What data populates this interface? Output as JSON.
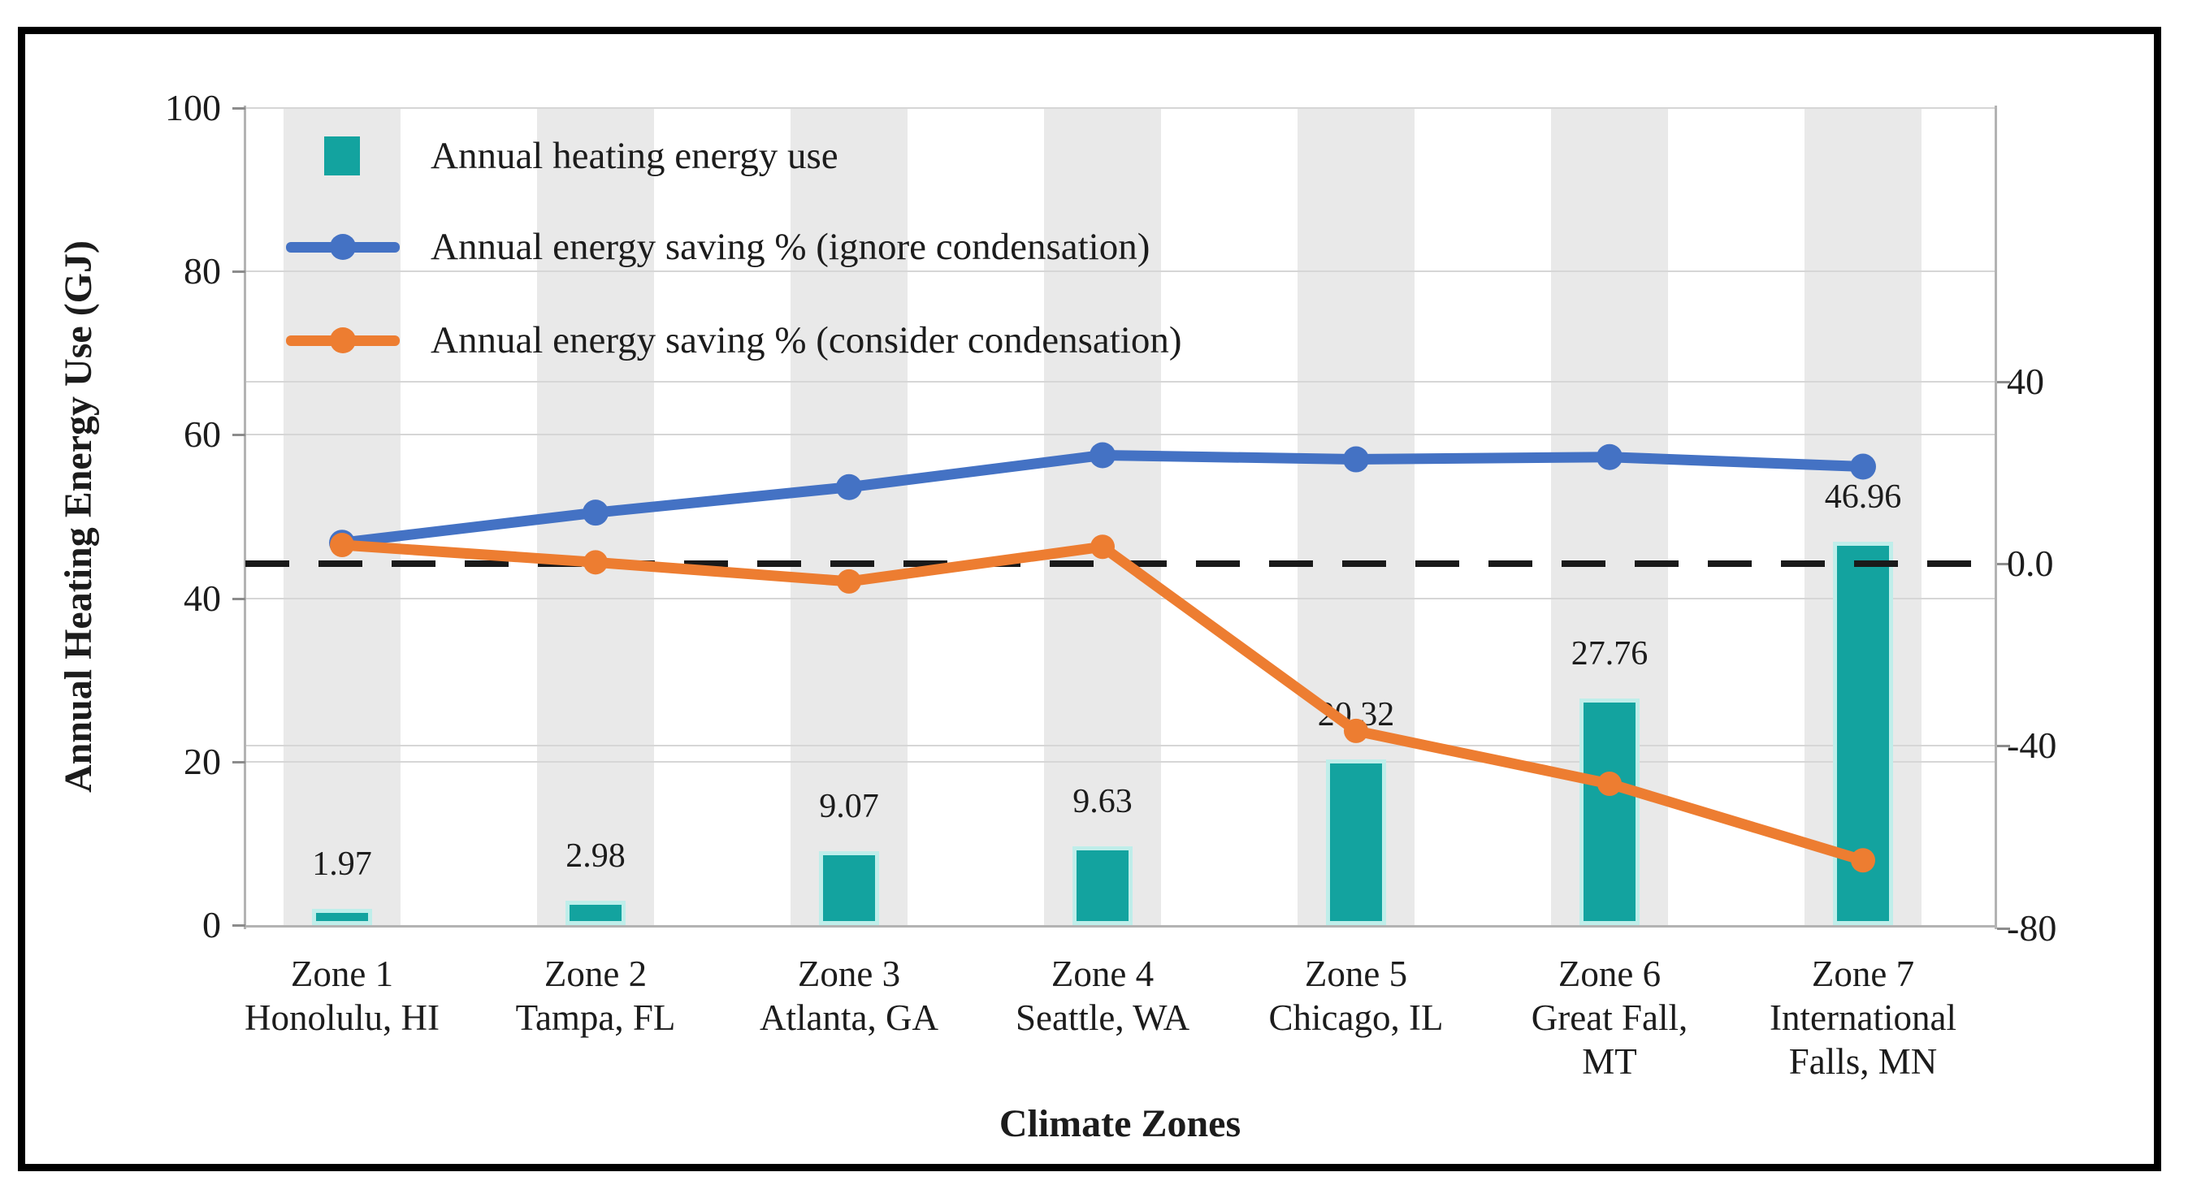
{
  "figure": {
    "background": "#ffffff",
    "frame_color": "#000000"
  },
  "legend": {
    "position": "top-left inside plot",
    "items": [
      {
        "label": "Annual heating energy use",
        "marker": "square",
        "color": "#13a39f"
      },
      {
        "label": "Annual energy saving % (ignore condensation)",
        "marker": "line-dot",
        "color": "#4472c4"
      },
      {
        "label": "Annual energy saving % (consider condensation)",
        "marker": "line-dot",
        "color": "#ed7d31"
      }
    ]
  },
  "chart_data": {
    "type": "bar+line combo, dual y-axes",
    "categories": [
      [
        "Zone 1",
        "Honolulu, HI"
      ],
      [
        "Zone 2",
        "Tampa, FL"
      ],
      [
        "Zone 3",
        "Atlanta, GA"
      ],
      [
        "Zone 4",
        "Seattle, WA"
      ],
      [
        "Zone 5",
        "Chicago, IL"
      ],
      [
        "Zone 6",
        "Great Fall,",
        "MT"
      ],
      [
        "Zone 7",
        "International",
        "Falls, MN"
      ]
    ],
    "bar_series": {
      "name": "Annual heating energy use",
      "axis": "left",
      "unit": "GJ",
      "color": "#13a39f",
      "edge_color": "#bfeeea",
      "values": [
        1.97,
        2.98,
        9.07,
        9.63,
        20.32,
        27.76,
        46.96
      ],
      "labels": [
        "1.97",
        "2.98",
        "9.07",
        "9.63",
        "20.32",
        "27.76",
        "46.96"
      ]
    },
    "line_series": [
      {
        "name": "Annual energy saving % (ignore condensation)",
        "axis": "right",
        "color": "#4472c4",
        "values_approx": [
          4.6,
          11.2,
          16.8,
          23.8,
          22.9,
          23.4,
          21.3
        ]
      },
      {
        "name": "Annual energy saving % (consider condensation)",
        "axis": "right",
        "color": "#ed7d31",
        "values_approx": [
          4.1,
          0.3,
          -3.9,
          3.7,
          -36.7,
          -48.3,
          -65.1
        ]
      }
    ],
    "left_axis": {
      "title": "Annual Heating Energy Use (GJ)",
      "range": [
        0,
        100
      ],
      "ticks": [
        0,
        20,
        40,
        60,
        80,
        100
      ],
      "tick_labels": [
        "0",
        "20",
        "40",
        "60",
        "80",
        "100"
      ]
    },
    "right_axis": {
      "range_approx": [
        -80,
        100
      ],
      "tick_values": [
        40,
        0,
        -40,
        -80
      ],
      "tick_labels": [
        "40",
        "0.0",
        "-40",
        "-80"
      ]
    },
    "x_axis": {
      "title": "Climate Zones"
    },
    "zero_line": {
      "axis": "right",
      "value": 0,
      "style": "dashed",
      "color": "#1a1a1a"
    },
    "background_bands": {
      "color": "#e9e9e9",
      "behind": "each category column"
    },
    "grid": {
      "color": "#d6d6d6",
      "left_axis_lines": [
        20,
        40,
        60,
        80,
        100
      ],
      "right_axis_lines": [
        40,
        -40
      ]
    },
    "legend_position": "top-left inside plot area"
  }
}
